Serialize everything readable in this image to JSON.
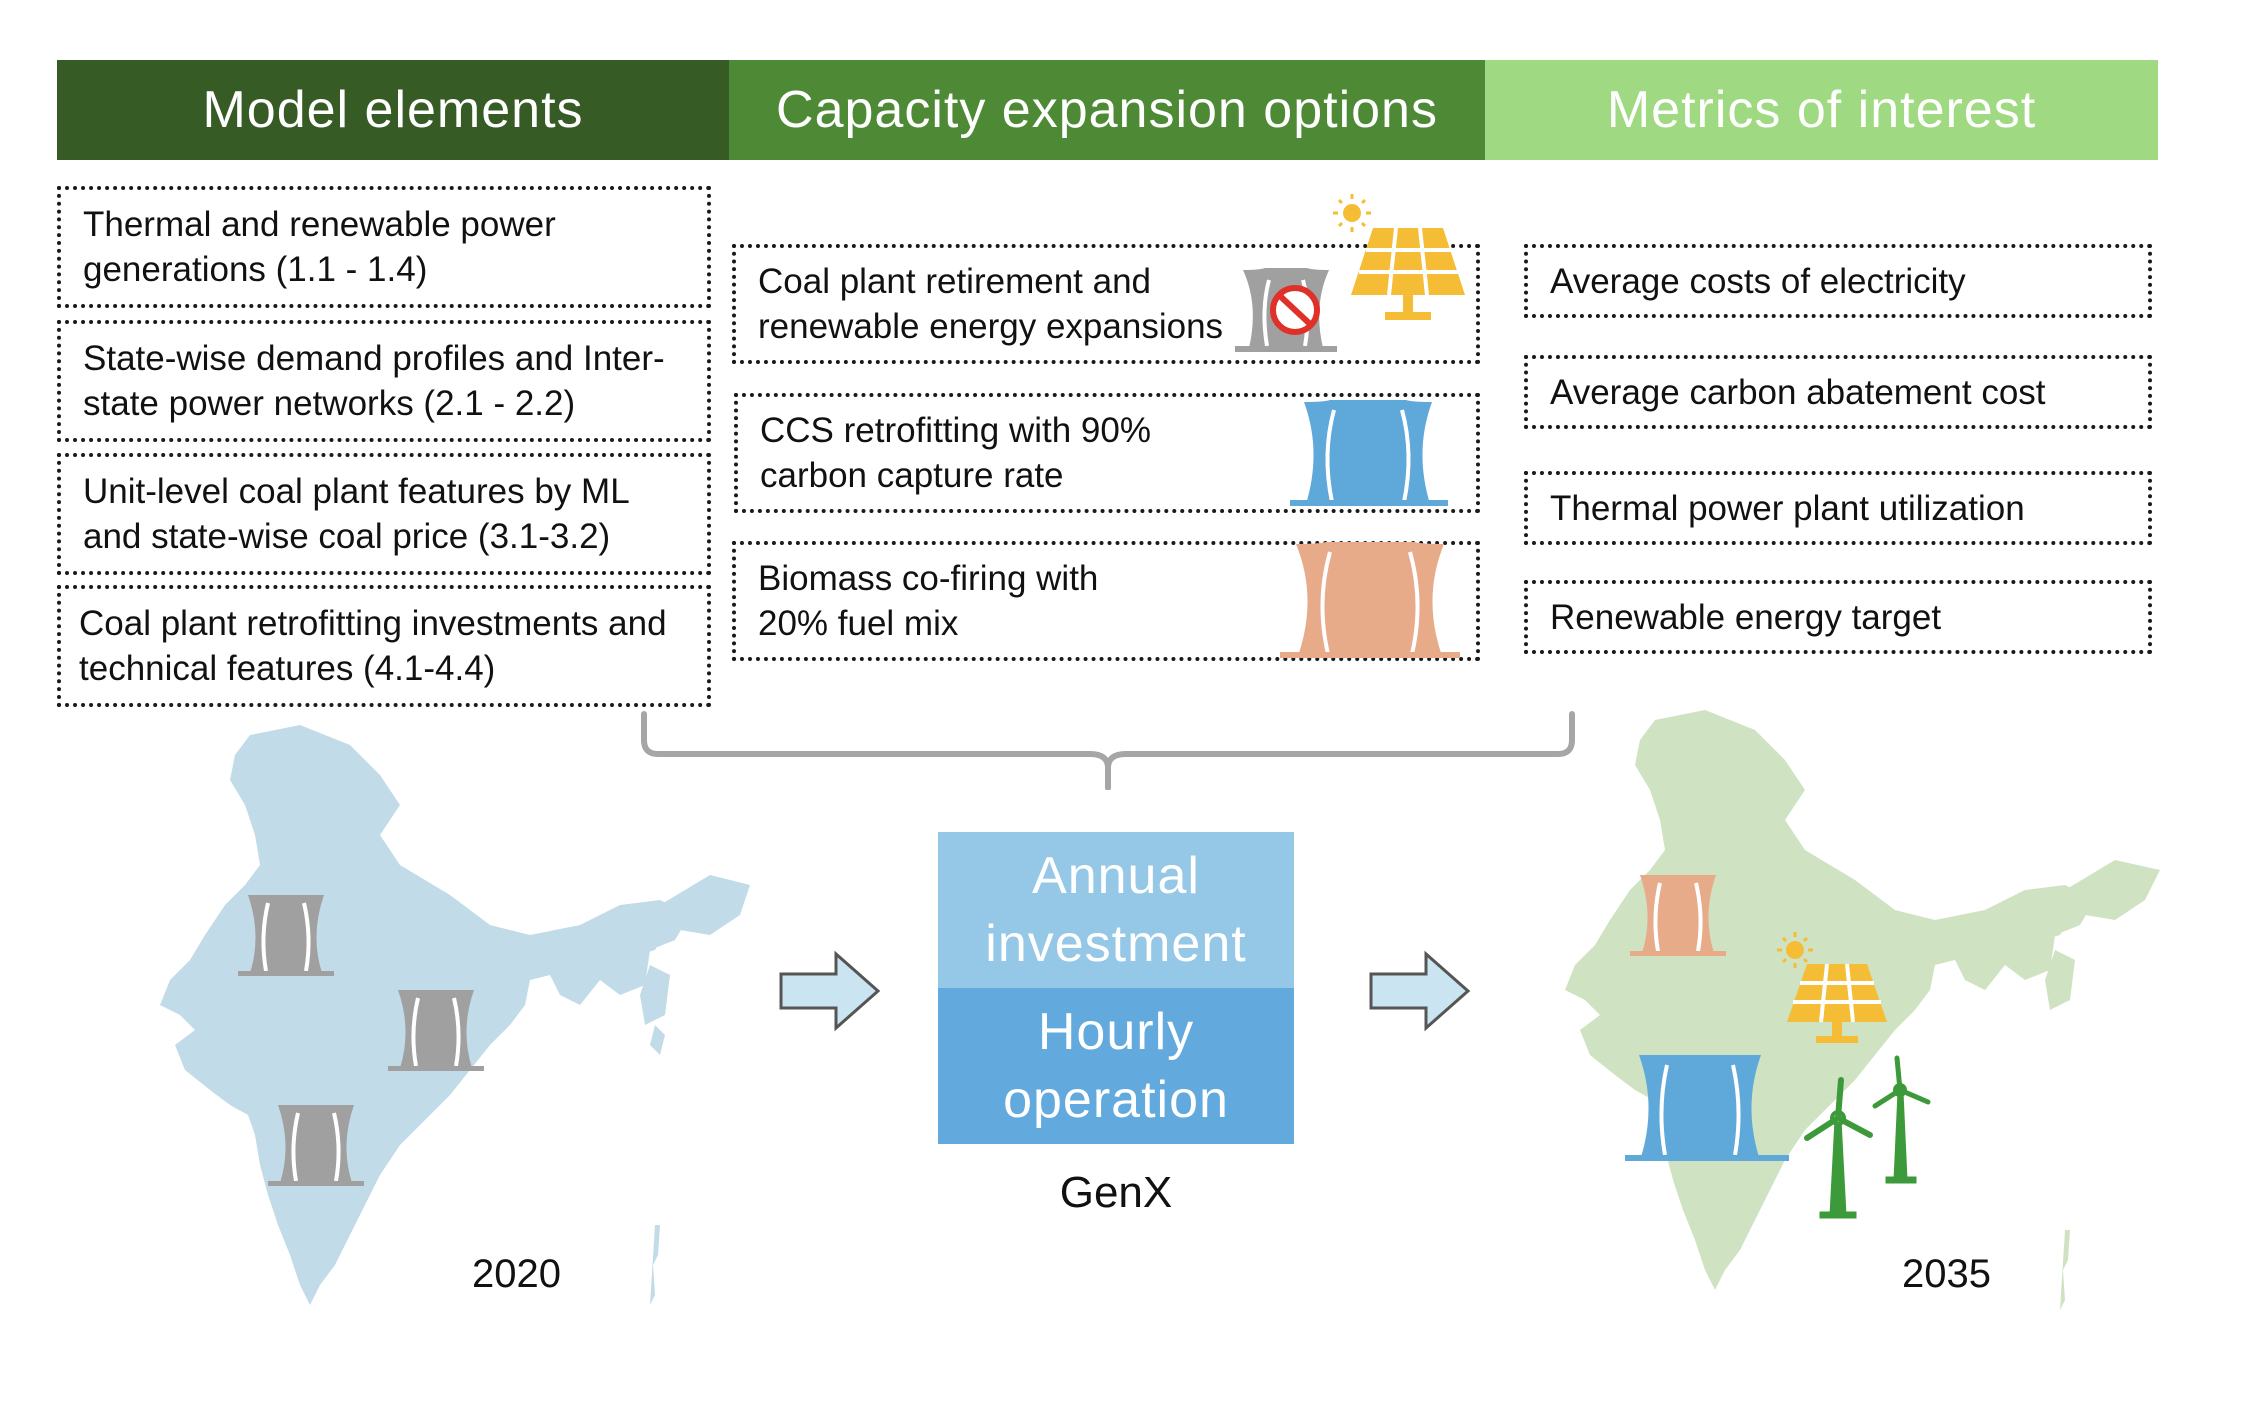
{
  "headers": {
    "model_elements": "Model elements",
    "capacity_expansion": "Capacity expansion options",
    "metrics": "Metrics of interest"
  },
  "model_elements": [
    "Thermal and renewable power\ngenerations (1.1 - 1.4)",
    "State-wise demand profiles and Inter-\nstate power networks (2.1 - 2.2)",
    "Unit-level coal plant features by ML\nand state-wise coal price (3.1-3.2)",
    "Coal plant retrofitting investments and\ntechnical features (4.1-4.4)"
  ],
  "capacity_options": [
    "Coal plant retirement and\nrenewable energy expansions",
    "CCS retrofitting with 90%\ncarbon capture rate",
    "Biomass co-firing with\n20% fuel mix"
  ],
  "metrics": [
    "Average costs of electricity",
    "Average carbon abatement cost",
    "Thermal power plant utilization",
    "Renewable energy target"
  ],
  "center": {
    "top_label": "Annual\ninvestment",
    "bottom_label": "Hourly\noperation",
    "model_name": "GenX"
  },
  "years": {
    "start": "2020",
    "end": "2035"
  },
  "colors": {
    "header_dark_green": "#375b25",
    "header_mid_green": "#4e8a36",
    "header_light_green": "#9fd981",
    "map_2020_blue": "#c2dbe8",
    "map_2035_green": "#cfe3c2",
    "coal_plant_gray": "#a0a0a0",
    "ccs_plant_blue": "#5fa8da",
    "biomass_plant_orange": "#e8ab8a",
    "solar_yellow": "#f5bd36",
    "wind_green": "#3c9a3a",
    "annual_box_blue": "#95c7e7",
    "hourly_box_blue": "#62a9dd",
    "arrow_fill": "#cbe4f2"
  }
}
